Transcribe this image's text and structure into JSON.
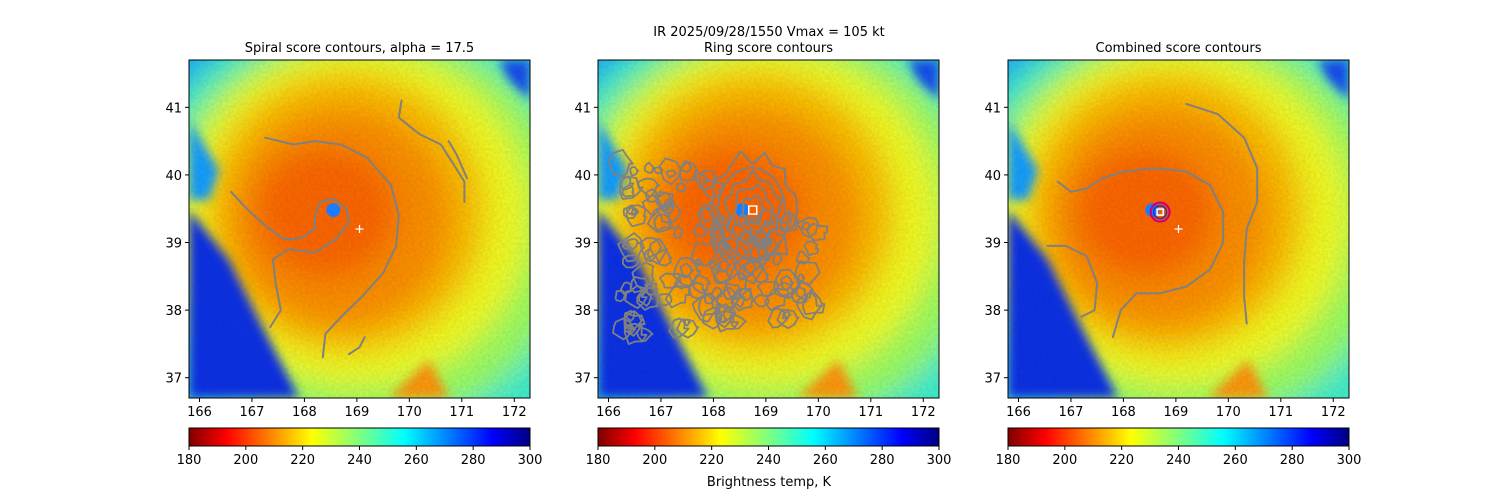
{
  "figure": {
    "suptitle_line1": "IR  2025/09/28/1550    Vmax = 105 kt",
    "colorbar_label": "Brightness temp, K"
  },
  "chart_data": [
    {
      "type": "heatmap",
      "title": "Spiral score contours, alpha = 17.5",
      "xlim": [
        165.8,
        172.3
      ],
      "ylim": [
        36.7,
        41.7
      ],
      "xticks": [
        166,
        167,
        168,
        169,
        170,
        171,
        172
      ],
      "yticks": [
        37,
        38,
        39,
        40,
        41
      ],
      "colorbar": {
        "cmap": "jet_r",
        "range": [
          180,
          300
        ],
        "ticks": [
          180,
          200,
          220,
          240,
          260,
          280,
          300
        ]
      },
      "storm_center_marker": {
        "symbol": "+",
        "lon": 169.05,
        "lat": 39.2
      },
      "eye": {
        "lon": 168.55,
        "lat": 39.48
      },
      "contours": [
        {
          "name": "spiral",
          "color": "#808080",
          "points": [
            [
              166.6,
              39.75
            ],
            [
              166.9,
              39.5
            ],
            [
              167.25,
              39.25
            ],
            [
              167.6,
              39.05
            ],
            [
              167.9,
              39.05
            ],
            [
              168.2,
              39.2
            ],
            [
              168.2,
              39.4
            ],
            [
              168.3,
              39.6
            ],
            [
              168.55,
              39.65
            ],
            [
              168.8,
              39.5
            ],
            [
              168.85,
              39.3
            ],
            [
              168.6,
              39.05
            ],
            [
              168.2,
              38.85
            ],
            [
              167.7,
              38.9
            ],
            [
              167.4,
              38.75
            ],
            [
              167.45,
              38.4
            ],
            [
              167.55,
              38.0
            ],
            [
              167.35,
              37.75
            ]
          ]
        },
        {
          "name": "outer",
          "color": "#808080",
          "points": [
            [
              167.25,
              40.55
            ],
            [
              167.8,
              40.45
            ],
            [
              168.2,
              40.5
            ],
            [
              168.7,
              40.45
            ],
            [
              169.2,
              40.25
            ],
            [
              169.65,
              39.85
            ],
            [
              169.8,
              39.4
            ],
            [
              169.75,
              38.95
            ],
            [
              169.5,
              38.55
            ],
            [
              169.1,
              38.2
            ],
            [
              168.7,
              37.9
            ],
            [
              168.4,
              37.65
            ],
            [
              168.35,
              37.3
            ]
          ]
        },
        {
          "name": "right-arc",
          "color": "#808080",
          "points": [
            [
              169.85,
              41.1
            ],
            [
              169.8,
              40.85
            ],
            [
              170.2,
              40.6
            ],
            [
              170.6,
              40.45
            ],
            [
              170.85,
              40.15
            ],
            [
              171.05,
              39.9
            ],
            [
              171.05,
              39.6
            ]
          ]
        },
        {
          "name": "short-arc",
          "color": "#808080",
          "points": [
            [
              170.75,
              40.5
            ],
            [
              170.9,
              40.3
            ],
            [
              171.1,
              39.95
            ]
          ]
        },
        {
          "name": "fragment",
          "color": "#808080",
          "points": [
            [
              168.85,
              37.35
            ],
            [
              169.05,
              37.45
            ],
            [
              169.15,
              37.6
            ]
          ]
        }
      ]
    },
    {
      "type": "heatmap",
      "title": "Ring score contours",
      "xlim": [
        165.8,
        172.3
      ],
      "ylim": [
        36.7,
        41.7
      ],
      "xticks": [
        166,
        167,
        168,
        169,
        170,
        171,
        172
      ],
      "yticks": [
        37,
        38,
        39,
        40,
        41
      ],
      "colorbar": {
        "cmap": "jet_r",
        "range": [
          180,
          300
        ],
        "ticks": [
          180,
          200,
          220,
          240,
          260,
          280,
          300
        ]
      },
      "ring_center_marker": {
        "symbol": "square",
        "lon": 168.75,
        "lat": 39.48
      },
      "eye": {
        "lon": 168.55,
        "lat": 39.48
      },
      "contours": [
        {
          "name": "rings",
          "color": "#808080",
          "levels": 5,
          "center": [
            168.75,
            39.48
          ],
          "radii_deg": [
            0.2,
            0.35,
            0.5,
            0.65,
            0.8
          ]
        },
        {
          "name": "western-noise",
          "color": "#808080",
          "region": [
            [
              166.2,
              40.2
            ],
            [
              167.6,
              40.2
            ],
            [
              168.0,
              38.5
            ],
            [
              167.9,
              37.6
            ],
            [
              166.3,
              38.0
            ]
          ]
        },
        {
          "name": "eastern-noise",
          "color": "#808080",
          "region": [
            [
              167.9,
              39.4
            ],
            [
              169.0,
              38.6
            ],
            [
              170.0,
              38.1
            ],
            [
              169.6,
              37.8
            ],
            [
              168.1,
              37.9
            ]
          ]
        }
      ]
    },
    {
      "type": "heatmap",
      "title": "Combined score contours",
      "xlim": [
        165.8,
        172.3
      ],
      "ylim": [
        36.7,
        41.7
      ],
      "xticks": [
        166,
        167,
        168,
        169,
        170,
        171,
        172
      ],
      "yticks": [
        37,
        38,
        39,
        40,
        41
      ],
      "colorbar": {
        "cmap": "jet_r",
        "range": [
          180,
          300
        ],
        "ticks": [
          180,
          200,
          220,
          240,
          260,
          280,
          300
        ]
      },
      "storm_center_marker": {
        "symbol": "+",
        "lon": 169.05,
        "lat": 39.2
      },
      "best_fit_marker": {
        "symbol": "square",
        "lon": 168.7,
        "lat": 39.45
      },
      "eye": {
        "lon": 168.55,
        "lat": 39.48
      },
      "ring": {
        "lon": 168.7,
        "lat": 39.45,
        "radius_deg": 0.18,
        "colors": [
          "#d0006f",
          "#3030c0"
        ]
      },
      "contours": [
        {
          "name": "outer-loop",
          "color": "#808080",
          "points": [
            [
              166.75,
              39.9
            ],
            [
              167.0,
              39.75
            ],
            [
              167.3,
              39.8
            ],
            [
              167.6,
              39.95
            ],
            [
              168.0,
              40.05
            ],
            [
              168.6,
              40.1
            ],
            [
              169.2,
              40.05
            ],
            [
              169.65,
              39.85
            ],
            [
              169.9,
              39.45
            ],
            [
              169.9,
              39.0
            ],
            [
              169.65,
              38.6
            ],
            [
              169.2,
              38.35
            ],
            [
              168.7,
              38.25
            ],
            [
              168.25,
              38.25
            ],
            [
              167.95,
              38.0
            ],
            [
              167.8,
              37.6
            ]
          ]
        },
        {
          "name": "right-arc",
          "color": "#808080",
          "points": [
            [
              169.2,
              41.05
            ],
            [
              169.8,
              40.9
            ],
            [
              170.3,
              40.55
            ],
            [
              170.55,
              40.1
            ],
            [
              170.55,
              39.6
            ],
            [
              170.35,
              39.2
            ],
            [
              170.3,
              38.7
            ],
            [
              170.3,
              38.2
            ],
            [
              170.35,
              37.8
            ]
          ]
        },
        {
          "name": "west-loop",
          "color": "#808080",
          "points": [
            [
              166.55,
              38.95
            ],
            [
              166.9,
              38.95
            ],
            [
              167.3,
              38.8
            ],
            [
              167.5,
              38.4
            ],
            [
              167.45,
              38.0
            ],
            [
              167.2,
              37.9
            ]
          ]
        }
      ]
    }
  ]
}
